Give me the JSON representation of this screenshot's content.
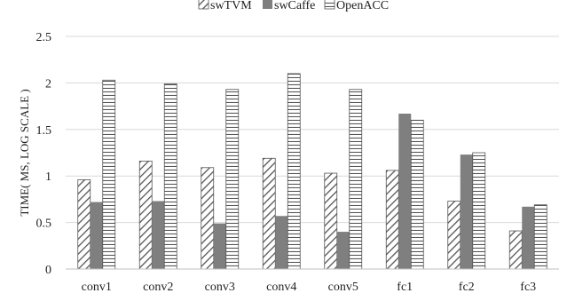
{
  "chart_data": {
    "type": "bar",
    "title": "",
    "xlabel": "",
    "ylabel": "TIME( MS, LOG SCALE )",
    "ylim": [
      0,
      2.5
    ],
    "yticks": [
      "0",
      "0.5",
      "1",
      "1.5",
      "2",
      "2.5"
    ],
    "grid": true,
    "legend_position": "top",
    "categories": [
      "conv1",
      "conv2",
      "conv3",
      "conv4",
      "conv5",
      "fc1",
      "fc2",
      "fc3"
    ],
    "series": [
      {
        "name": "swTVM",
        "pattern": "diagonal-hatch",
        "color": "#555555",
        "values": [
          0.96,
          1.16,
          1.09,
          1.19,
          1.03,
          1.06,
          0.73,
          0.41
        ]
      },
      {
        "name": "swCaffe",
        "pattern": "solid",
        "color": "#7f7f7f",
        "values": [
          0.72,
          0.73,
          0.49,
          0.57,
          0.4,
          1.67,
          1.23,
          0.67
        ]
      },
      {
        "name": "OpenACC",
        "pattern": "horizontal-lines",
        "color": "#555555",
        "values": [
          2.03,
          1.99,
          1.93,
          2.1,
          1.93,
          1.6,
          1.25,
          0.69
        ]
      }
    ]
  }
}
